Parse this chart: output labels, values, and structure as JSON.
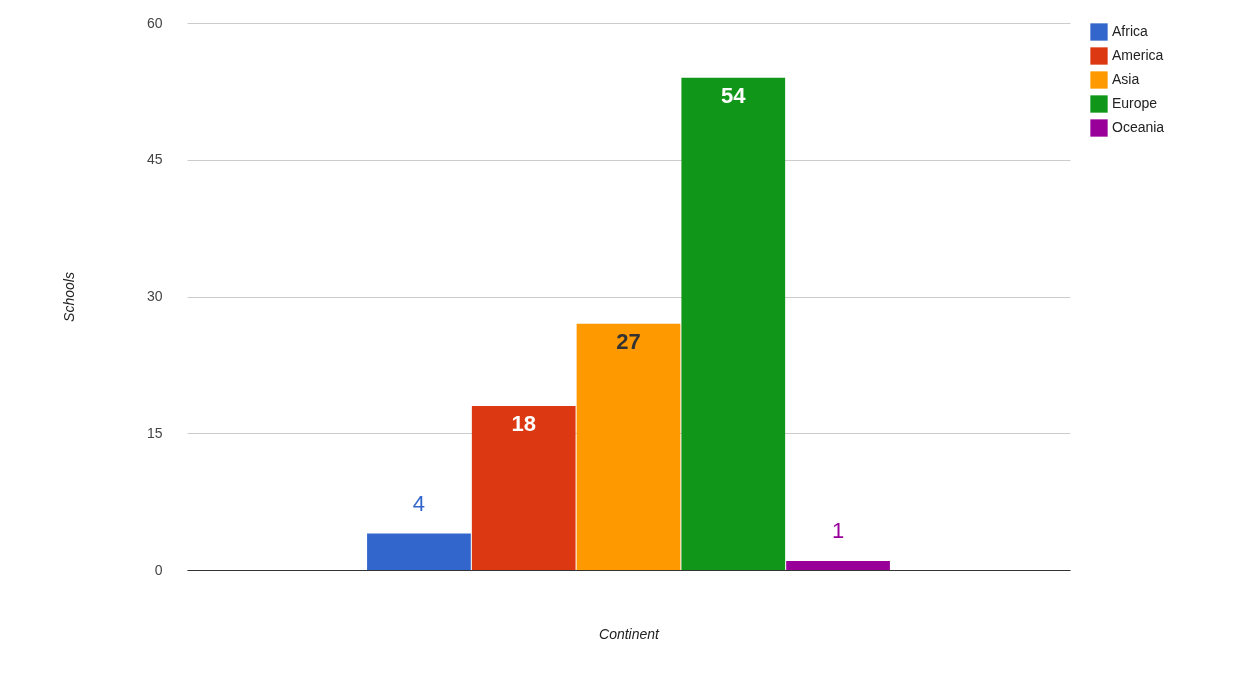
{
  "chart_data": {
    "type": "bar",
    "xlabel": "Continent",
    "ylabel": "Schools",
    "categories": [
      null
    ],
    "series": [
      {
        "name": "Africa",
        "color": "#3366cc",
        "values": [
          4
        ]
      },
      {
        "name": "America",
        "color": "#dc3912",
        "values": [
          18
        ]
      },
      {
        "name": "Asia",
        "color": "#ff9900",
        "values": [
          27
        ]
      },
      {
        "name": "Europe",
        "color": "#109618",
        "values": [
          54
        ]
      },
      {
        "name": "Oceania",
        "color": "#990099",
        "values": [
          1
        ]
      }
    ],
    "ylim": [
      0,
      60
    ],
    "yticks": [
      0,
      15,
      30,
      45,
      60
    ],
    "grid": "y",
    "legend": "top right",
    "data_labels": true
  }
}
